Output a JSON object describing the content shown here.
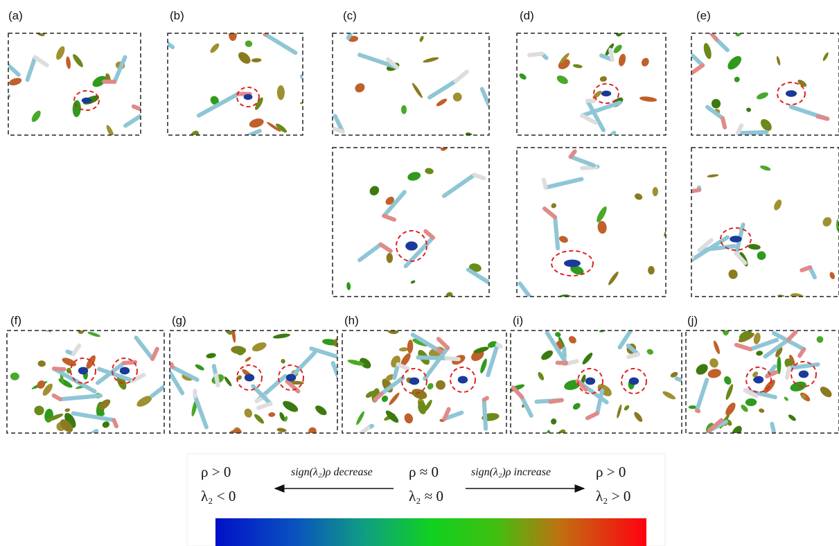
{
  "panels": [
    {
      "label": "(a)"
    },
    {
      "label": "(b)"
    },
    {
      "label": "(c)"
    },
    {
      "label": "(d)"
    },
    {
      "label": "(e)"
    },
    {
      "label": "(f)"
    },
    {
      "label": "(g)"
    },
    {
      "label": "(h)"
    },
    {
      "label": "(i)"
    },
    {
      "label": "(j)"
    }
  ],
  "legend": {
    "left_top": "ρ > 0",
    "left_bottom": "λ₂ < 0",
    "decrease": "sign(λ₂)ρ decrease",
    "center_top": "ρ ≈ 0",
    "center_bottom": "λ₂ ≈ 0",
    "increase": "sign(λ₂)ρ increase",
    "right_top": "ρ > 0",
    "right_bottom": "λ₂ > 0"
  }
}
